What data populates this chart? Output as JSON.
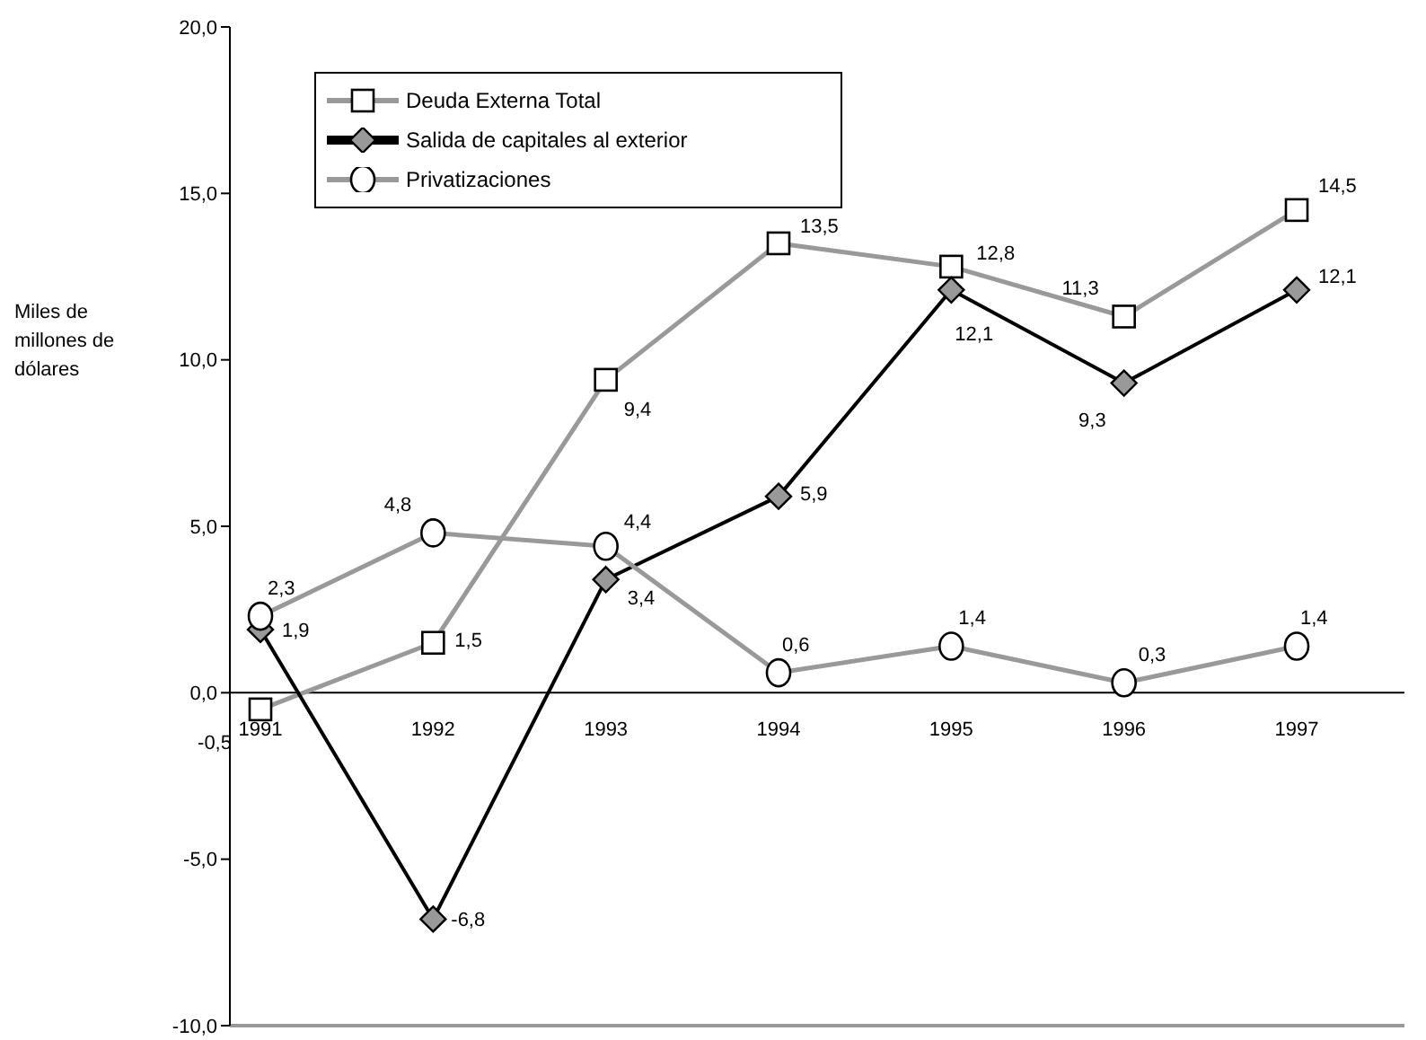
{
  "chart_data": {
    "type": "line",
    "ylabel": "Miles de millones de dólares",
    "categories": [
      "1991",
      "1992",
      "1993",
      "1994",
      "1995",
      "1996",
      "1997"
    ],
    "ylim": [
      -10,
      20
    ],
    "yticks": [
      {
        "value": -10,
        "label": "-10,0"
      },
      {
        "value": -5,
        "label": "-5,0"
      },
      {
        "value": 0,
        "label": "0,0"
      },
      {
        "value": 5,
        "label": "5,0"
      },
      {
        "value": 10,
        "label": "10,0"
      },
      {
        "value": 15,
        "label": "15,0"
      },
      {
        "value": 20,
        "label": "20,0"
      }
    ],
    "grid": false,
    "legend": "top left",
    "series": [
      {
        "name": "Deuda Externa Total",
        "color": "#999999",
        "marker": "square",
        "values": [
          -0.5,
          1.5,
          9.4,
          13.5,
          12.8,
          11.3,
          14.5
        ],
        "value_labels": [
          "-0,5",
          "1,5",
          "9,4",
          "13,5",
          "12,8",
          "11,3",
          "14,5"
        ]
      },
      {
        "name": "Salida de capitales al exterior",
        "color": "#000000",
        "marker": "diamond",
        "values": [
          1.9,
          -6.8,
          3.4,
          5.9,
          12.1,
          9.3,
          12.1
        ],
        "value_labels": [
          "1,9",
          "-6,8",
          "3,4",
          "5,9",
          "12,1",
          "9,3",
          "12,1"
        ]
      },
      {
        "name": "Privatizaciones",
        "color": "#999999",
        "marker": "circle",
        "values": [
          2.3,
          4.8,
          4.4,
          0.6,
          1.4,
          0.3,
          1.4
        ],
        "value_labels": [
          "2,3",
          "4,8",
          "4,4",
          "0,6",
          "1,4",
          "0,3",
          "1,4"
        ]
      }
    ]
  }
}
